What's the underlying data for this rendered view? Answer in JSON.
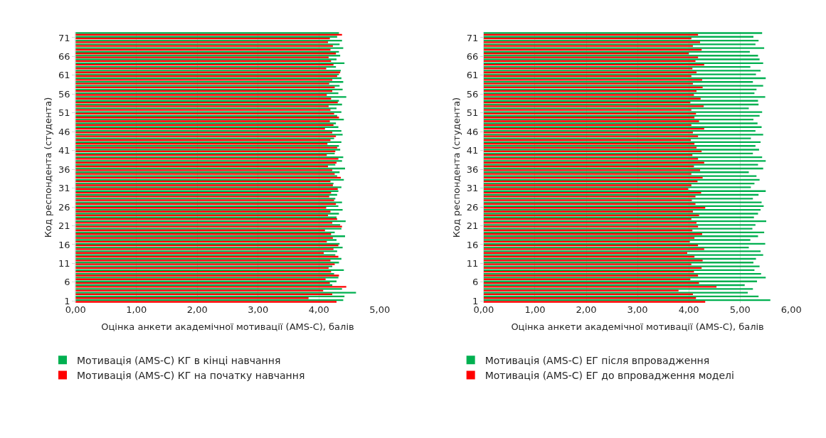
{
  "chart_data": [
    {
      "type": "bar",
      "orientation": "horizontal",
      "xlabel": "Оцінка анкети академічної мотивації (AMS-C), балів",
      "ylabel": "Код респондента (студента)",
      "categories": [
        null,
        "71",
        null,
        null,
        null,
        null,
        "66",
        null,
        null,
        null,
        null,
        "61",
        null,
        null,
        null,
        null,
        "56",
        null,
        null,
        null,
        null,
        "51",
        null,
        null,
        null,
        null,
        "46",
        null,
        null,
        null,
        null,
        "41",
        null,
        null,
        null,
        null,
        "36",
        null,
        null,
        null,
        null,
        "31",
        null,
        null,
        null,
        null,
        "26",
        null,
        null,
        null,
        null,
        "21",
        null,
        null,
        null,
        null,
        "16",
        null,
        null,
        null,
        null,
        "11",
        null,
        null,
        null,
        null,
        "6",
        null,
        null,
        null,
        null,
        "1"
      ],
      "xlim": [
        0,
        5
      ],
      "xticks": [
        {
          "value": 0,
          "label": "0,00"
        },
        {
          "value": 1,
          "label": "1,00"
        },
        {
          "value": 2,
          "label": "2,00"
        },
        {
          "value": 3,
          "label": "3,00"
        },
        {
          "value": 4,
          "label": "4,00"
        },
        {
          "value": 5,
          "label": "5,00"
        }
      ],
      "grid": "x",
      "legend": "bottom",
      "series": [
        {
          "name": "Мотивація (AMS-C) КГ в кінці навчання",
          "color": "#00b050",
          "values": [
            4.33,
            4.3,
            4.38,
            4.34,
            4.4,
            4.33,
            4.35,
            4.29,
            4.42,
            4.28,
            4.36,
            4.33,
            4.37,
            4.4,
            4.34,
            4.39,
            4.32,
            4.45,
            4.33,
            4.38,
            4.29,
            4.37,
            4.3,
            4.41,
            4.28,
            4.32,
            4.37,
            4.39,
            4.25,
            4.37,
            4.33,
            4.35,
            4.26,
            4.4,
            4.38,
            4.27,
            4.43,
            4.34,
            4.3,
            4.41,
            4.24,
            4.37,
            4.32,
            4.3,
            4.27,
            4.38,
            4.32,
            4.39,
            4.33,
            4.29,
            4.44,
            4.35,
            4.37,
            4.26,
            4.43,
            4.29,
            4.34,
            4.39,
            4.3,
            4.27,
            4.37,
            4.33,
            4.22,
            4.41,
            4.25,
            4.32,
            4.29,
            4.22,
            4.38,
            4.61,
            4.42,
            4.4
          ]
        },
        {
          "name": "Мотивація (AMS-C) КГ на початку навчання",
          "color": "#ff0000",
          "values": [
            4.38,
            4.18,
            4.15,
            4.23,
            4.19,
            4.28,
            4.16,
            4.2,
            4.24,
            4.12,
            4.35,
            4.3,
            4.22,
            4.17,
            4.26,
            4.22,
            4.13,
            4.2,
            4.31,
            4.16,
            4.19,
            4.25,
            4.33,
            4.18,
            4.24,
            4.1,
            4.22,
            4.28,
            4.19,
            4.14,
            4.3,
            4.27,
            4.13,
            4.32,
            4.29,
            4.15,
            4.22,
            4.26,
            4.36,
            4.19,
            4.23,
            4.31,
            4.2,
            4.17,
            4.25,
            4.28,
            4.12,
            4.19,
            4.15,
            4.3,
            4.22,
            4.38,
            4.1,
            4.2,
            4.23,
            4.13,
            4.32,
            4.24,
            4.08,
            4.32,
            4.19,
            4.26,
            4.16,
            4.2,
            4.33,
            4.11,
            4.18,
            4.45,
            4.07,
            4.22,
            3.83,
            4.29
          ]
        }
      ]
    },
    {
      "type": "bar",
      "orientation": "horizontal",
      "xlabel": "Оцінка анкети академічної мотивації (AMS-C), балів",
      "ylabel": "Код респондента (студента)",
      "categories": [
        null,
        "71",
        null,
        null,
        null,
        null,
        "66",
        null,
        null,
        null,
        null,
        "61",
        null,
        null,
        null,
        null,
        "56",
        null,
        null,
        null,
        null,
        "51",
        null,
        null,
        null,
        null,
        "46",
        null,
        null,
        null,
        null,
        "41",
        null,
        null,
        null,
        null,
        "36",
        null,
        null,
        null,
        null,
        "31",
        null,
        null,
        null,
        null,
        "26",
        null,
        null,
        null,
        null,
        "21",
        null,
        null,
        null,
        null,
        "16",
        null,
        null,
        null,
        null,
        "11",
        null,
        null,
        null,
        null,
        "6",
        null,
        null,
        null,
        null,
        "1"
      ],
      "xlim": [
        0,
        6
      ],
      "xticks": [
        {
          "value": 0,
          "label": "0,00"
        },
        {
          "value": 1,
          "label": "1,00"
        },
        {
          "value": 2,
          "label": "2,00"
        },
        {
          "value": 3,
          "label": "3,00"
        },
        {
          "value": 4,
          "label": "4,00"
        },
        {
          "value": 5,
          "label": "5,00"
        },
        {
          "value": 6,
          "label": "6,00"
        }
      ],
      "grid": "x",
      "legend": "bottom",
      "series": [
        {
          "name": "Мотивація (AMS-C) ЕГ після впровадження",
          "color": "#00b050",
          "values": [
            5.43,
            5.26,
            5.36,
            5.3,
            5.47,
            5.19,
            5.35,
            5.38,
            5.45,
            5.2,
            5.4,
            5.31,
            5.5,
            5.25,
            5.45,
            5.32,
            5.28,
            5.49,
            5.35,
            5.36,
            5.17,
            5.43,
            5.38,
            5.26,
            5.34,
            5.42,
            5.3,
            5.45,
            5.21,
            5.4,
            5.3,
            5.37,
            5.25,
            5.43,
            5.5,
            5.35,
            5.45,
            5.17,
            5.32,
            5.38,
            5.28,
            5.21,
            5.5,
            5.36,
            5.25,
            5.42,
            5.46,
            5.4,
            5.35,
            5.27,
            5.51,
            5.3,
            5.24,
            5.47,
            5.35,
            5.2,
            5.49,
            5.17,
            5.4,
            5.45,
            5.31,
            5.26,
            5.38,
            5.28,
            5.41,
            5.5,
            5.33,
            5.09,
            5.25,
            5.15,
            5.36,
            5.59
          ]
        },
        {
          "name": "Мотивація (AMS-C) ЕГ до впровадження моделі",
          "color": "#ff0000",
          "values": [
            4.18,
            4.05,
            4.22,
            4.08,
            4.25,
            4.0,
            4.18,
            4.13,
            4.3,
            4.07,
            4.15,
            4.05,
            4.26,
            4.08,
            4.27,
            4.15,
            4.1,
            4.23,
            4.03,
            4.29,
            4.05,
            4.14,
            4.11,
            4.2,
            4.05,
            4.3,
            4.08,
            4.18,
            4.04,
            4.11,
            4.15,
            4.25,
            4.07,
            4.18,
            4.3,
            4.1,
            4.22,
            4.05,
            4.27,
            4.17,
            4.05,
            3.99,
            4.24,
            4.13,
            4.06,
            4.13,
            4.32,
            4.08,
            4.2,
            4.05,
            4.15,
            4.18,
            4.07,
            4.26,
            4.11,
            4.02,
            4.18,
            4.3,
            3.97,
            4.11,
            4.27,
            4.05,
            4.25,
            4.1,
            4.18,
            4.03,
            4.2,
            4.54,
            3.8,
            4.08,
            4.14,
            4.32
          ]
        }
      ]
    }
  ]
}
